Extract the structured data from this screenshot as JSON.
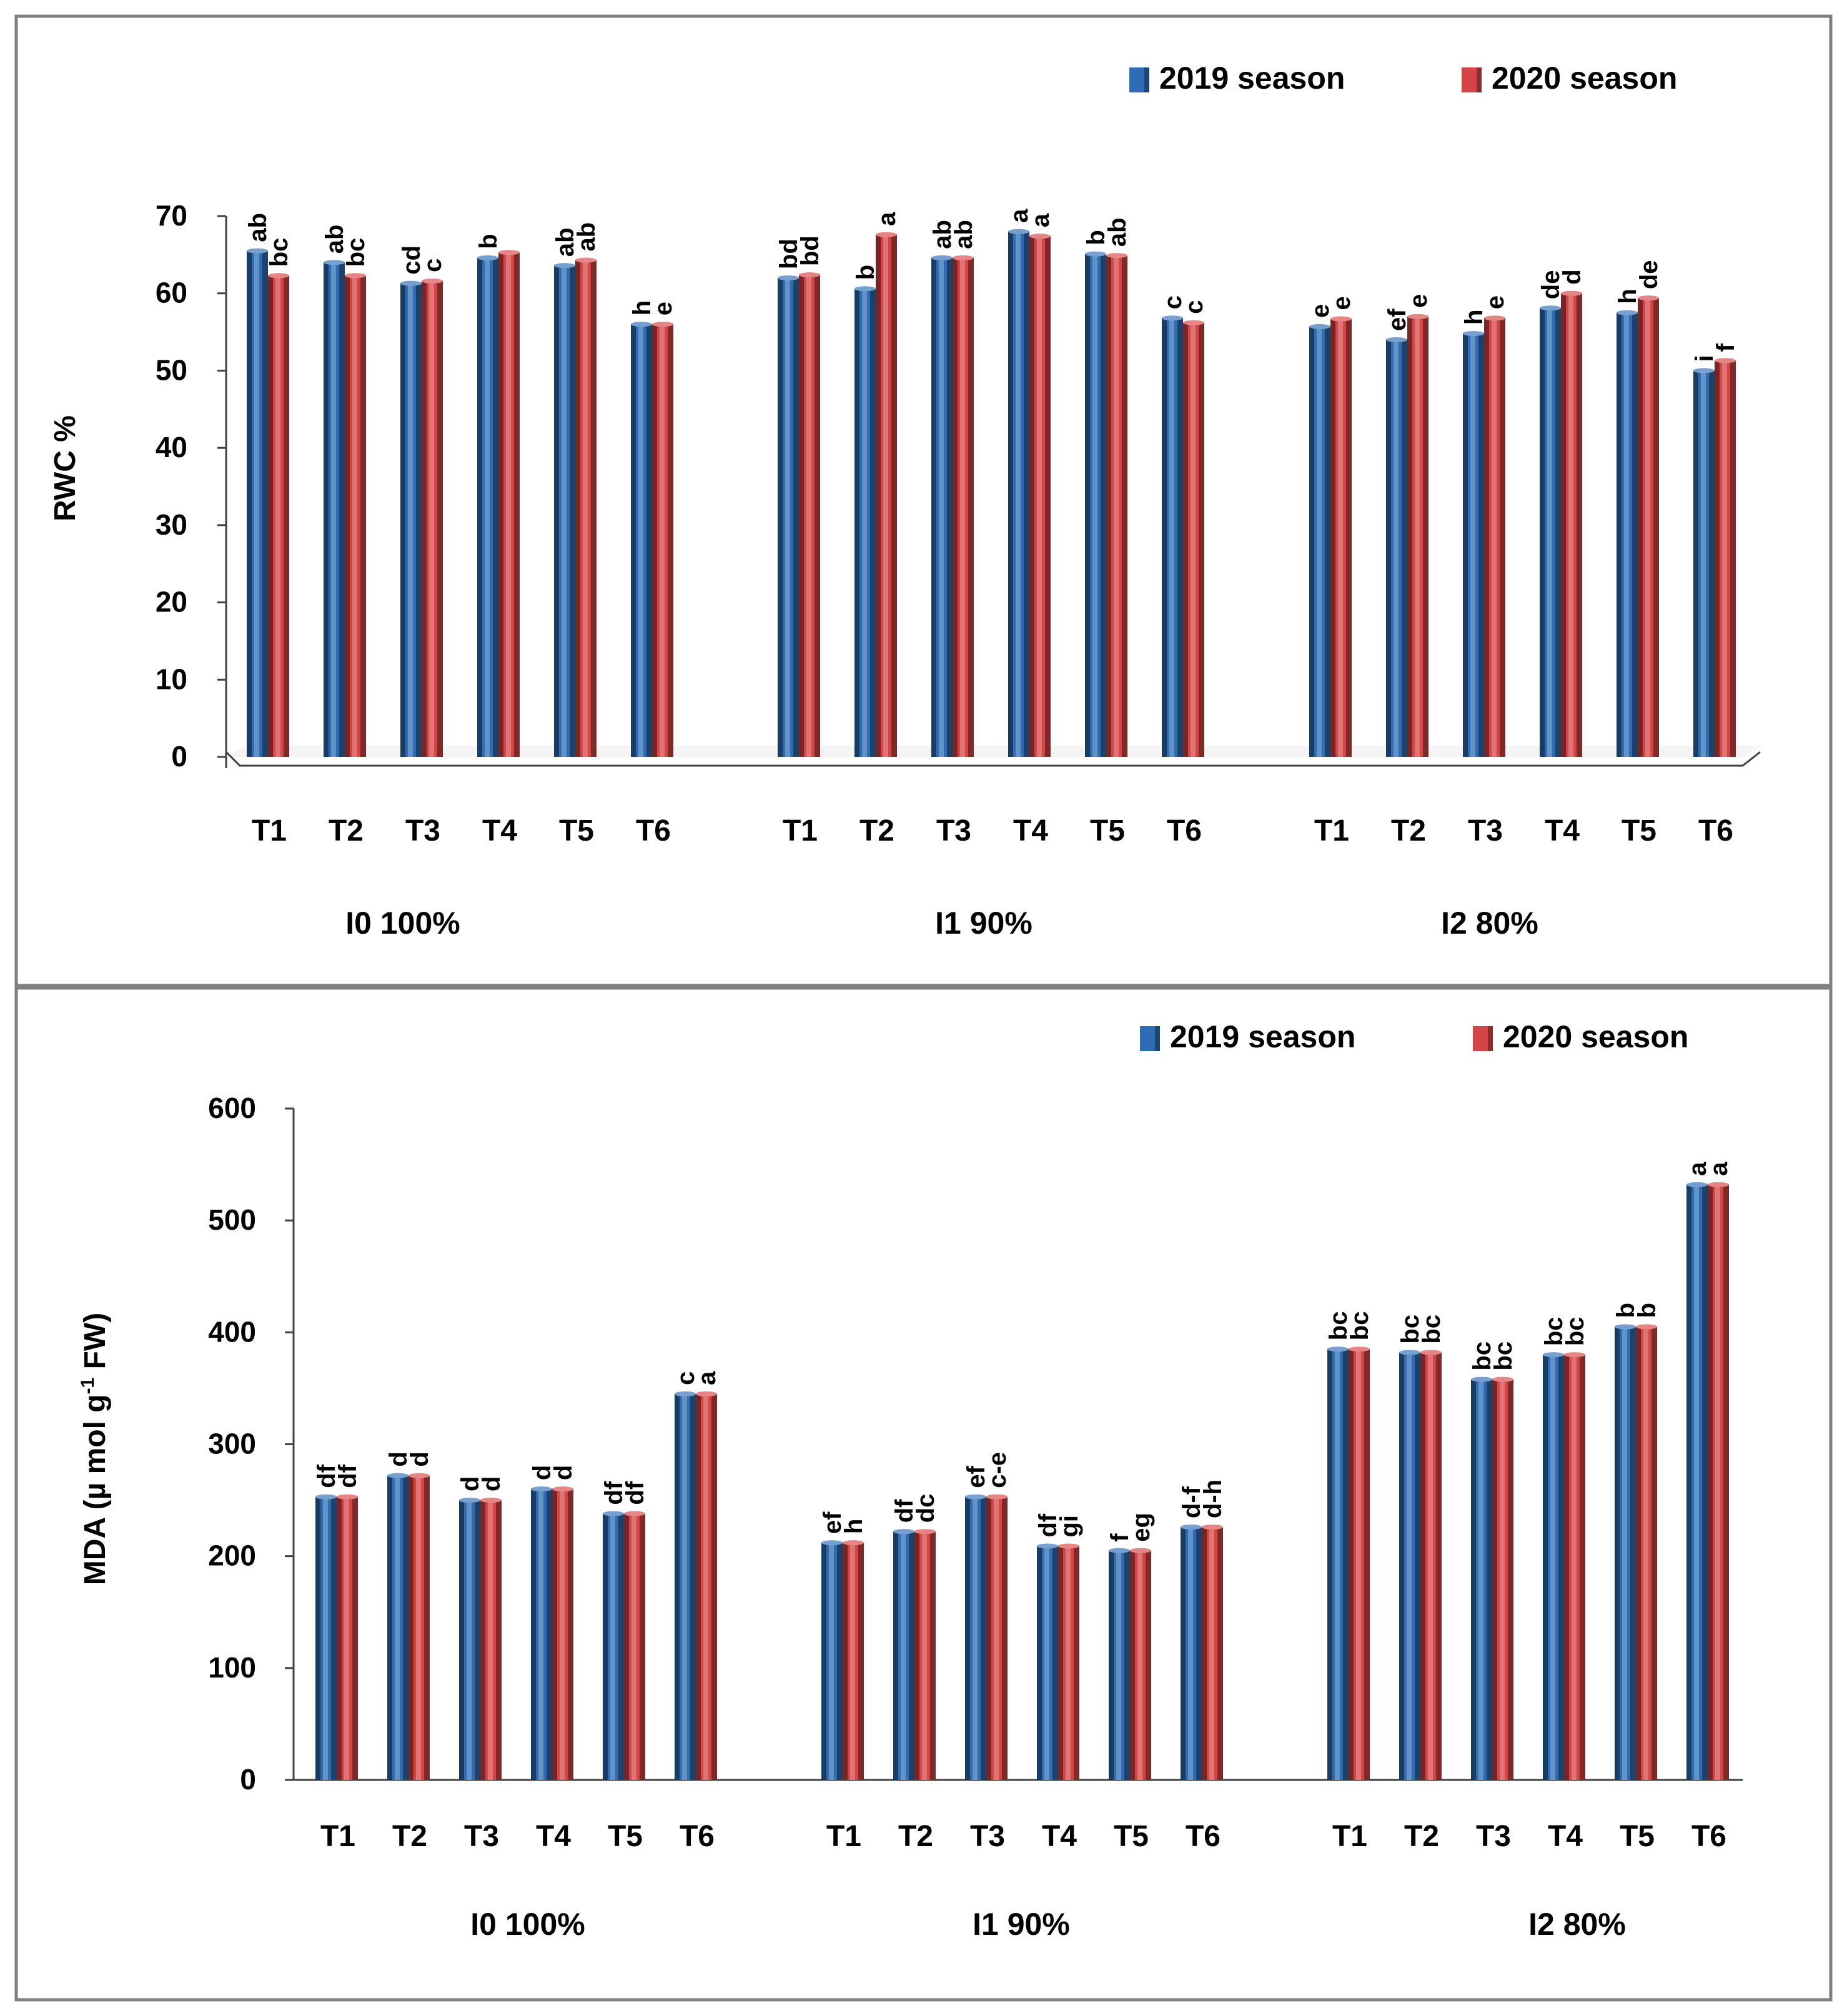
{
  "colors": {
    "series_2019": "#2e6db3",
    "series_2020": "#d64545",
    "axis": "#404040",
    "text": "#000000",
    "border": "#808080"
  },
  "chart_data": [
    {
      "type": "bar",
      "title": "",
      "xlabel": "",
      "ylabel": "RWC %",
      "ylim": [
        0,
        70
      ],
      "yticks": [
        "0",
        "10",
        "20",
        "30",
        "40",
        "50",
        "60",
        "70"
      ],
      "grid": false,
      "legend_position": "top-right",
      "groups": [
        "I0 100%",
        "I1 90%",
        "I2 80%"
      ],
      "categories": [
        "T1",
        "T2",
        "T3",
        "T4",
        "T5",
        "T6"
      ],
      "series": [
        {
          "name": "2019 season",
          "values": [
            [
              65.5,
              64.0,
              61.3,
              64.6,
              63.6,
              56.0
            ],
            [
              62.0,
              60.6,
              64.6,
              68.0,
              65.1,
              56.8
            ],
            [
              55.7,
              54.0,
              54.8,
              58.1,
              57.5,
              50.0
            ]
          ],
          "letters": [
            [
              "ab",
              "ab",
              "cd",
              "b",
              "ab",
              "h"
            ],
            [
              "bd",
              "b",
              "ab",
              "a",
              "b",
              "c"
            ],
            [
              "e",
              "ef",
              "h",
              "de",
              "h",
              "i"
            ]
          ]
        },
        {
          "name": "2020 season",
          "values": [
            [
              62.3,
              62.3,
              61.6,
              65.3,
              64.3,
              56.0
            ],
            [
              62.4,
              67.6,
              64.6,
              67.4,
              64.9,
              56.2
            ],
            [
              56.7,
              57.0,
              56.8,
              60.0,
              59.4,
              51.3
            ]
          ],
          "letters": [
            [
              "bc",
              "bc",
              "c",
              "",
              "ab",
              "e"
            ],
            [
              "bd",
              "a",
              "ab",
              "a",
              "ab",
              "c"
            ],
            [
              "e",
              "e",
              "e",
              "d",
              "de",
              "f"
            ]
          ]
        }
      ]
    },
    {
      "type": "bar",
      "title": "",
      "xlabel": "",
      "ylabel_main": "MDA (µ mol g",
      "ylabel_sup": "-1",
      "ylabel_end": " FW)",
      "ylim": [
        0,
        600
      ],
      "yticks": [
        "0",
        "100",
        "200",
        "300",
        "400",
        "500",
        "600"
      ],
      "grid": false,
      "legend_position": "top-right",
      "groups": [
        "I0 100%",
        "I1 90%",
        "I2 80%"
      ],
      "categories": [
        "T1",
        "T2",
        "T3",
        "T4",
        "T5",
        "T6"
      ],
      "series": [
        {
          "name": "2019 season",
          "values": [
            [
              253,
              272,
              250,
              260,
              238,
              345
            ],
            [
              212,
              222,
              253,
              209,
              205,
              226
            ],
            [
              385,
              382,
              358,
              380,
              405,
              532
            ]
          ],
          "letters": [
            [
              "df",
              "d",
              "d",
              "d",
              "df",
              "c"
            ],
            [
              "ef",
              "df",
              "ef",
              "df",
              "f",
              "d-f"
            ],
            [
              "bc",
              "bc",
              "bc",
              "bc",
              "b",
              "a"
            ]
          ]
        },
        {
          "name": "2020 season",
          "values": [
            [
              253,
              272,
              250,
              260,
              238,
              345
            ],
            [
              212,
              222,
              253,
              209,
              205,
              226
            ],
            [
              385,
              382,
              358,
              380,
              405,
              532
            ]
          ],
          "letters": [
            [
              "df",
              "d",
              "d",
              "d",
              "df",
              "a"
            ],
            [
              "h",
              "dc",
              "c-e",
              "gi",
              "eg",
              "d-h"
            ],
            [
              "bc",
              "bc",
              "bc",
              "bc",
              "b",
              "a"
            ]
          ]
        }
      ]
    }
  ]
}
